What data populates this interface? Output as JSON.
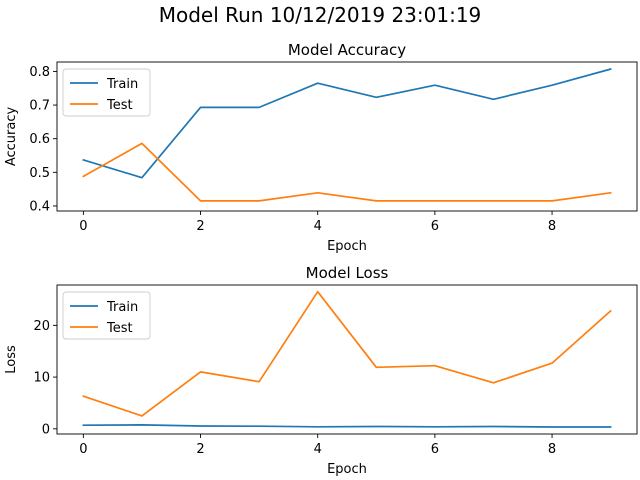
{
  "figure_title": "Model Run 10/12/2019 23:01:19",
  "colors": {
    "train": "#1f77b4",
    "test": "#ff7f0e"
  },
  "chart_data": [
    {
      "type": "line",
      "title": "Model Accuracy",
      "xlabel": "Epoch",
      "ylabel": "Accuracy",
      "x": [
        0,
        1,
        2,
        3,
        4,
        5,
        6,
        7,
        8,
        9
      ],
      "xlim": [
        -0.45,
        9.45
      ],
      "ylim": [
        0.385,
        0.828
      ],
      "xticks": [
        0,
        2,
        4,
        6,
        8
      ],
      "xtick_labels": [
        "0",
        "2",
        "4",
        "6",
        "8"
      ],
      "yticks": [
        0.4,
        0.5,
        0.6,
        0.7,
        0.8
      ],
      "ytick_labels": [
        "0.4",
        "0.5",
        "0.6",
        "0.7",
        "0.8"
      ],
      "legend_position": "upper-left",
      "grid": false,
      "series": [
        {
          "name": "Train",
          "values": [
            0.537,
            0.484,
            0.693,
            0.693,
            0.765,
            0.723,
            0.759,
            0.717,
            0.759,
            0.807
          ]
        },
        {
          "name": "Test",
          "values": [
            0.488,
            0.586,
            0.415,
            0.415,
            0.439,
            0.415,
            0.415,
            0.415,
            0.415,
            0.439
          ]
        }
      ]
    },
    {
      "type": "line",
      "title": "Model Loss",
      "xlabel": "Epoch",
      "ylabel": "Loss",
      "x": [
        0,
        1,
        2,
        3,
        4,
        5,
        6,
        7,
        8,
        9
      ],
      "xlim": [
        -0.45,
        9.45
      ],
      "ylim": [
        -1.0,
        27.8
      ],
      "xticks": [
        0,
        2,
        4,
        6,
        8
      ],
      "xtick_labels": [
        "0",
        "2",
        "4",
        "6",
        "8"
      ],
      "yticks": [
        0,
        10,
        20
      ],
      "ytick_labels": [
        "0",
        "10",
        "20"
      ],
      "legend_position": "upper-left",
      "grid": false,
      "series": [
        {
          "name": "Train",
          "values": [
            0.7,
            0.75,
            0.55,
            0.5,
            0.4,
            0.45,
            0.4,
            0.45,
            0.35,
            0.35
          ]
        },
        {
          "name": "Test",
          "values": [
            6.3,
            2.5,
            11.0,
            9.1,
            26.5,
            11.9,
            12.2,
            8.9,
            12.7,
            22.8
          ]
        }
      ]
    }
  ]
}
